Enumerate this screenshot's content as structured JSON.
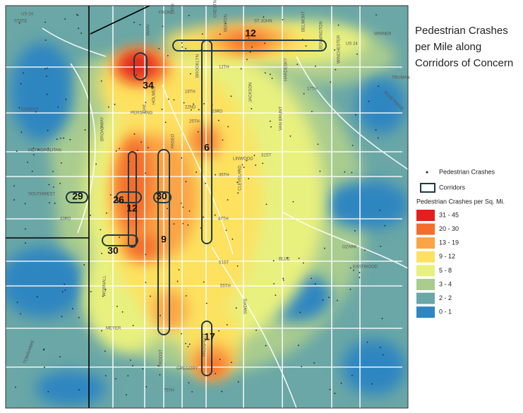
{
  "title": {
    "lines": [
      "Pedestrian Crashes",
      "per Mile along",
      "Corridors of Concern"
    ]
  },
  "legend": {
    "points": "Pedestrian Crashes",
    "corridors": "Corridors",
    "heading": "Pedestrian Crashes per Sq. Mi.",
    "classes": [
      {
        "label": "31 - 45",
        "color": "#e3201b"
      },
      {
        "label": "20 - 30",
        "color": "#f46d2b"
      },
      {
        "label": "13 - 19",
        "color": "#fba445"
      },
      {
        "label": "9 - 12",
        "color": "#fde15f"
      },
      {
        "label": "5 - 8",
        "color": "#e8f07e"
      },
      {
        "label": "3 - 4",
        "color": "#a9cc8f"
      },
      {
        "label": "2 - 2",
        "color": "#6aa7a6"
      },
      {
        "label": "0 - 1",
        "color": "#2f86c1"
      }
    ]
  },
  "corridors": [
    {
      "label": "34"
    },
    {
      "label": "12"
    },
    {
      "label": "6"
    },
    {
      "label": "26"
    },
    {
      "label": "12"
    },
    {
      "label": "29"
    },
    {
      "label": "30"
    },
    {
      "label": "30"
    },
    {
      "label": "9"
    },
    {
      "label": "17"
    }
  ],
  "streets": [
    "US-24",
    "STATE",
    "FRONT",
    "13TH",
    "ST JOHN",
    "CHESTNUT",
    "BENTON",
    "BELMONT",
    "WINNER",
    "US 24",
    "TRUMAN",
    "12TH",
    "17TH",
    "18TH",
    "22ND",
    "23RD",
    "25TH",
    "31ST",
    "35TH",
    "43RD",
    "47TH",
    "51ST",
    "55TH",
    "MEYER",
    "GREGORY",
    "75TH",
    "PASEO",
    "PROSPECT",
    "BROOKLYN",
    "CLEVELAND",
    "JACKSON",
    "HARDESKY",
    "VAN BRUNT",
    "BLUE RIDGE",
    "OZARK",
    "EASTWOOD",
    "SOUTHWEST",
    "METROPOLITAN",
    "KANSAS",
    "PERSHING",
    "HOLMES",
    "BROADWAY",
    "WORNALL",
    "TROOST",
    "SWOPE",
    "LINWOOD",
    "TOMAHAWK",
    "BLUE",
    "BENNINGTON",
    "WINCHESTER",
    "MAIN",
    "OAK"
  ]
}
